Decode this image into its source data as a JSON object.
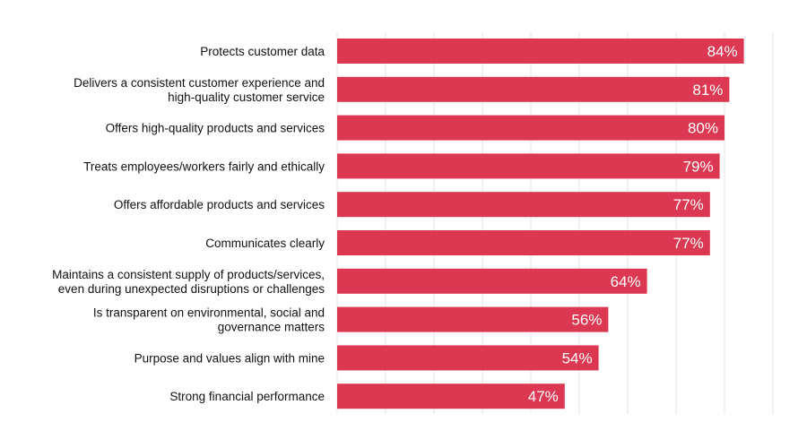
{
  "chart_data": {
    "type": "bar",
    "orientation": "horizontal",
    "categories": [
      [
        "Protects customer data"
      ],
      [
        "Delivers a consistent customer experience and",
        "high-quality customer service"
      ],
      [
        "Offers high-quality products and services"
      ],
      [
        "Treats employees/workers fairly and ethically"
      ],
      [
        "Offers affordable products and services"
      ],
      [
        "Communicates clearly"
      ],
      [
        "Maintains a consistent supply of products/services,",
        "even during unexpected disruptions or challenges"
      ],
      [
        "Is transparent on environmental, social and",
        "governance matters"
      ],
      [
        "Purpose and values align with mine"
      ],
      [
        "Strong financial performance"
      ]
    ],
    "values": [
      84,
      81,
      80,
      79,
      77,
      77,
      64,
      56,
      54,
      47
    ],
    "value_labels": [
      "84%",
      "81%",
      "80%",
      "79%",
      "77%",
      "77%",
      "64%",
      "56%",
      "54%",
      "47%"
    ],
    "xlim": [
      0,
      90
    ],
    "grid": true,
    "bar_color": "#dc3851",
    "grid_color": "#e3e3e3",
    "title": "",
    "xlabel": "",
    "ylabel": ""
  }
}
